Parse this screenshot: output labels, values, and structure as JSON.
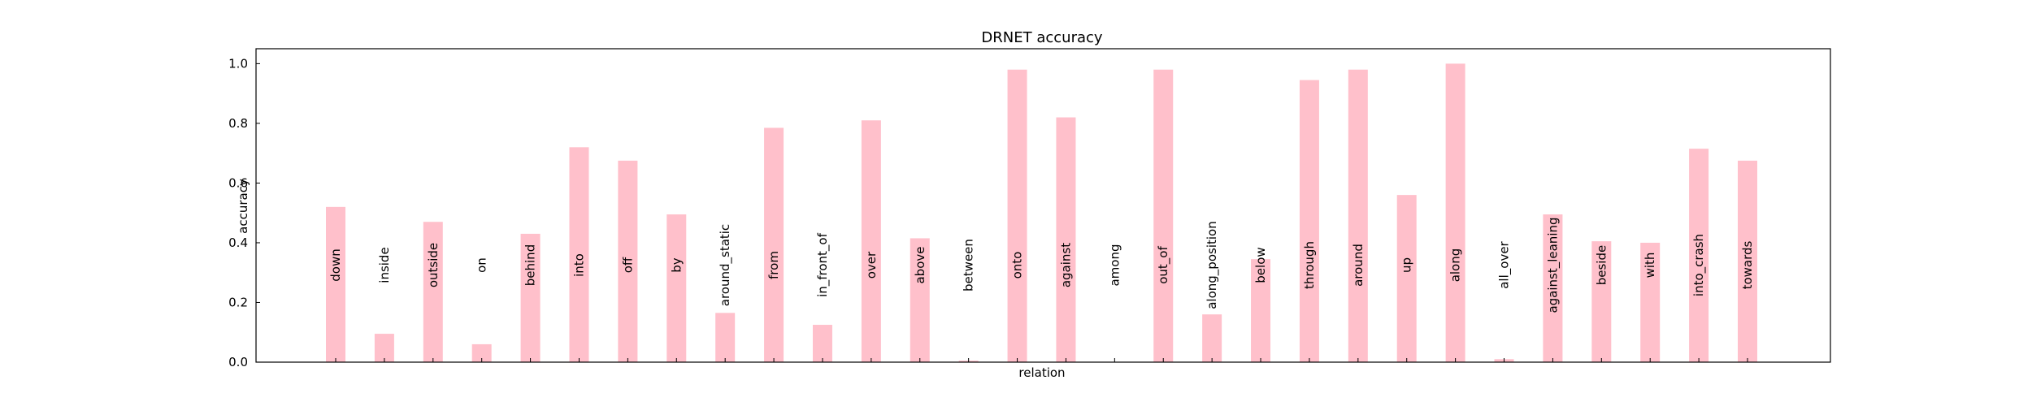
{
  "chart_data": {
    "type": "bar",
    "title": "DRNET accuracy",
    "xlabel": "relation",
    "ylabel": "accuracy",
    "ylim": [
      0,
      1.05
    ],
    "yticks": [
      "0.0",
      "0.2",
      "0.4",
      "0.6",
      "0.8",
      "1.0"
    ],
    "bar_color": "#ffc0cb",
    "grid": false,
    "categories": [
      "down",
      "inside",
      "outside",
      "on",
      "behind",
      "into",
      "off",
      "by",
      "around_static",
      "from",
      "in_front_of",
      "over",
      "above",
      "between",
      "onto",
      "against",
      "among",
      "out_of",
      "along_position",
      "below",
      "through",
      "around",
      "up",
      "along",
      "all_over",
      "against_leaning",
      "beside",
      "with",
      "into_crash",
      "towards"
    ],
    "values": [
      0.52,
      0.095,
      0.47,
      0.06,
      0.43,
      0.72,
      0.675,
      0.495,
      0.165,
      0.785,
      0.125,
      0.81,
      0.415,
      0.005,
      0.98,
      0.82,
      0.0,
      0.98,
      0.16,
      0.345,
      0.945,
      0.98,
      0.56,
      1.0,
      0.01,
      0.495,
      0.405,
      0.4,
      0.715,
      0.675
    ]
  }
}
